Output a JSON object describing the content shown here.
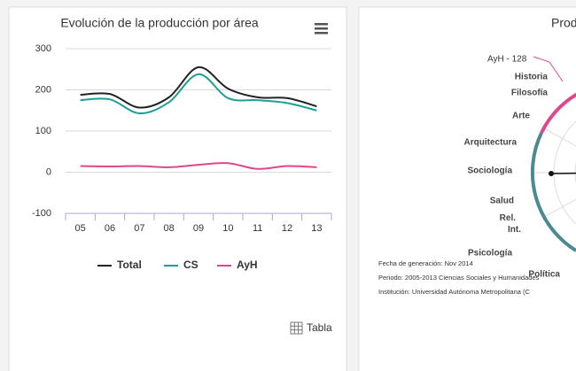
{
  "chart_data": [
    {
      "type": "line",
      "title": "Evolución de la producción por área",
      "categories": [
        "05",
        "06",
        "07",
        "08",
        "09",
        "10",
        "11",
        "12",
        "13"
      ],
      "series": [
        {
          "name": "Total",
          "color": "#222222",
          "values": [
            188,
            190,
            157,
            182,
            255,
            203,
            182,
            180,
            160
          ]
        },
        {
          "name": "CS",
          "color": "#1f9e98",
          "values": [
            175,
            177,
            143,
            170,
            238,
            180,
            175,
            168,
            150
          ]
        },
        {
          "name": "AyH",
          "color": "#e0468d",
          "values": [
            15,
            14,
            15,
            12,
            18,
            22,
            8,
            15,
            12
          ]
        }
      ],
      "ylim": [
        -100,
        300
      ],
      "yticks": [
        -100,
        0,
        100,
        200,
        300
      ],
      "grid": true,
      "legend": "bottom",
      "button": "Tabla"
    },
    {
      "type": "polar",
      "title": "Prod",
      "annotation": "AyH - 128",
      "categories": [
        "Historia",
        "Filosofía",
        "Arte",
        "Arquitectura",
        "Sociología",
        "Salud",
        "Rel. Int.",
        "Psicología",
        "Política"
      ],
      "notes": [
        "Fecha de generación: Nov 2014",
        "Periodo: 2005-2013 Ciencias Sociales y Humanidades",
        "Institución: Universidad Autónoma Metropolitana (C"
      ]
    }
  ]
}
